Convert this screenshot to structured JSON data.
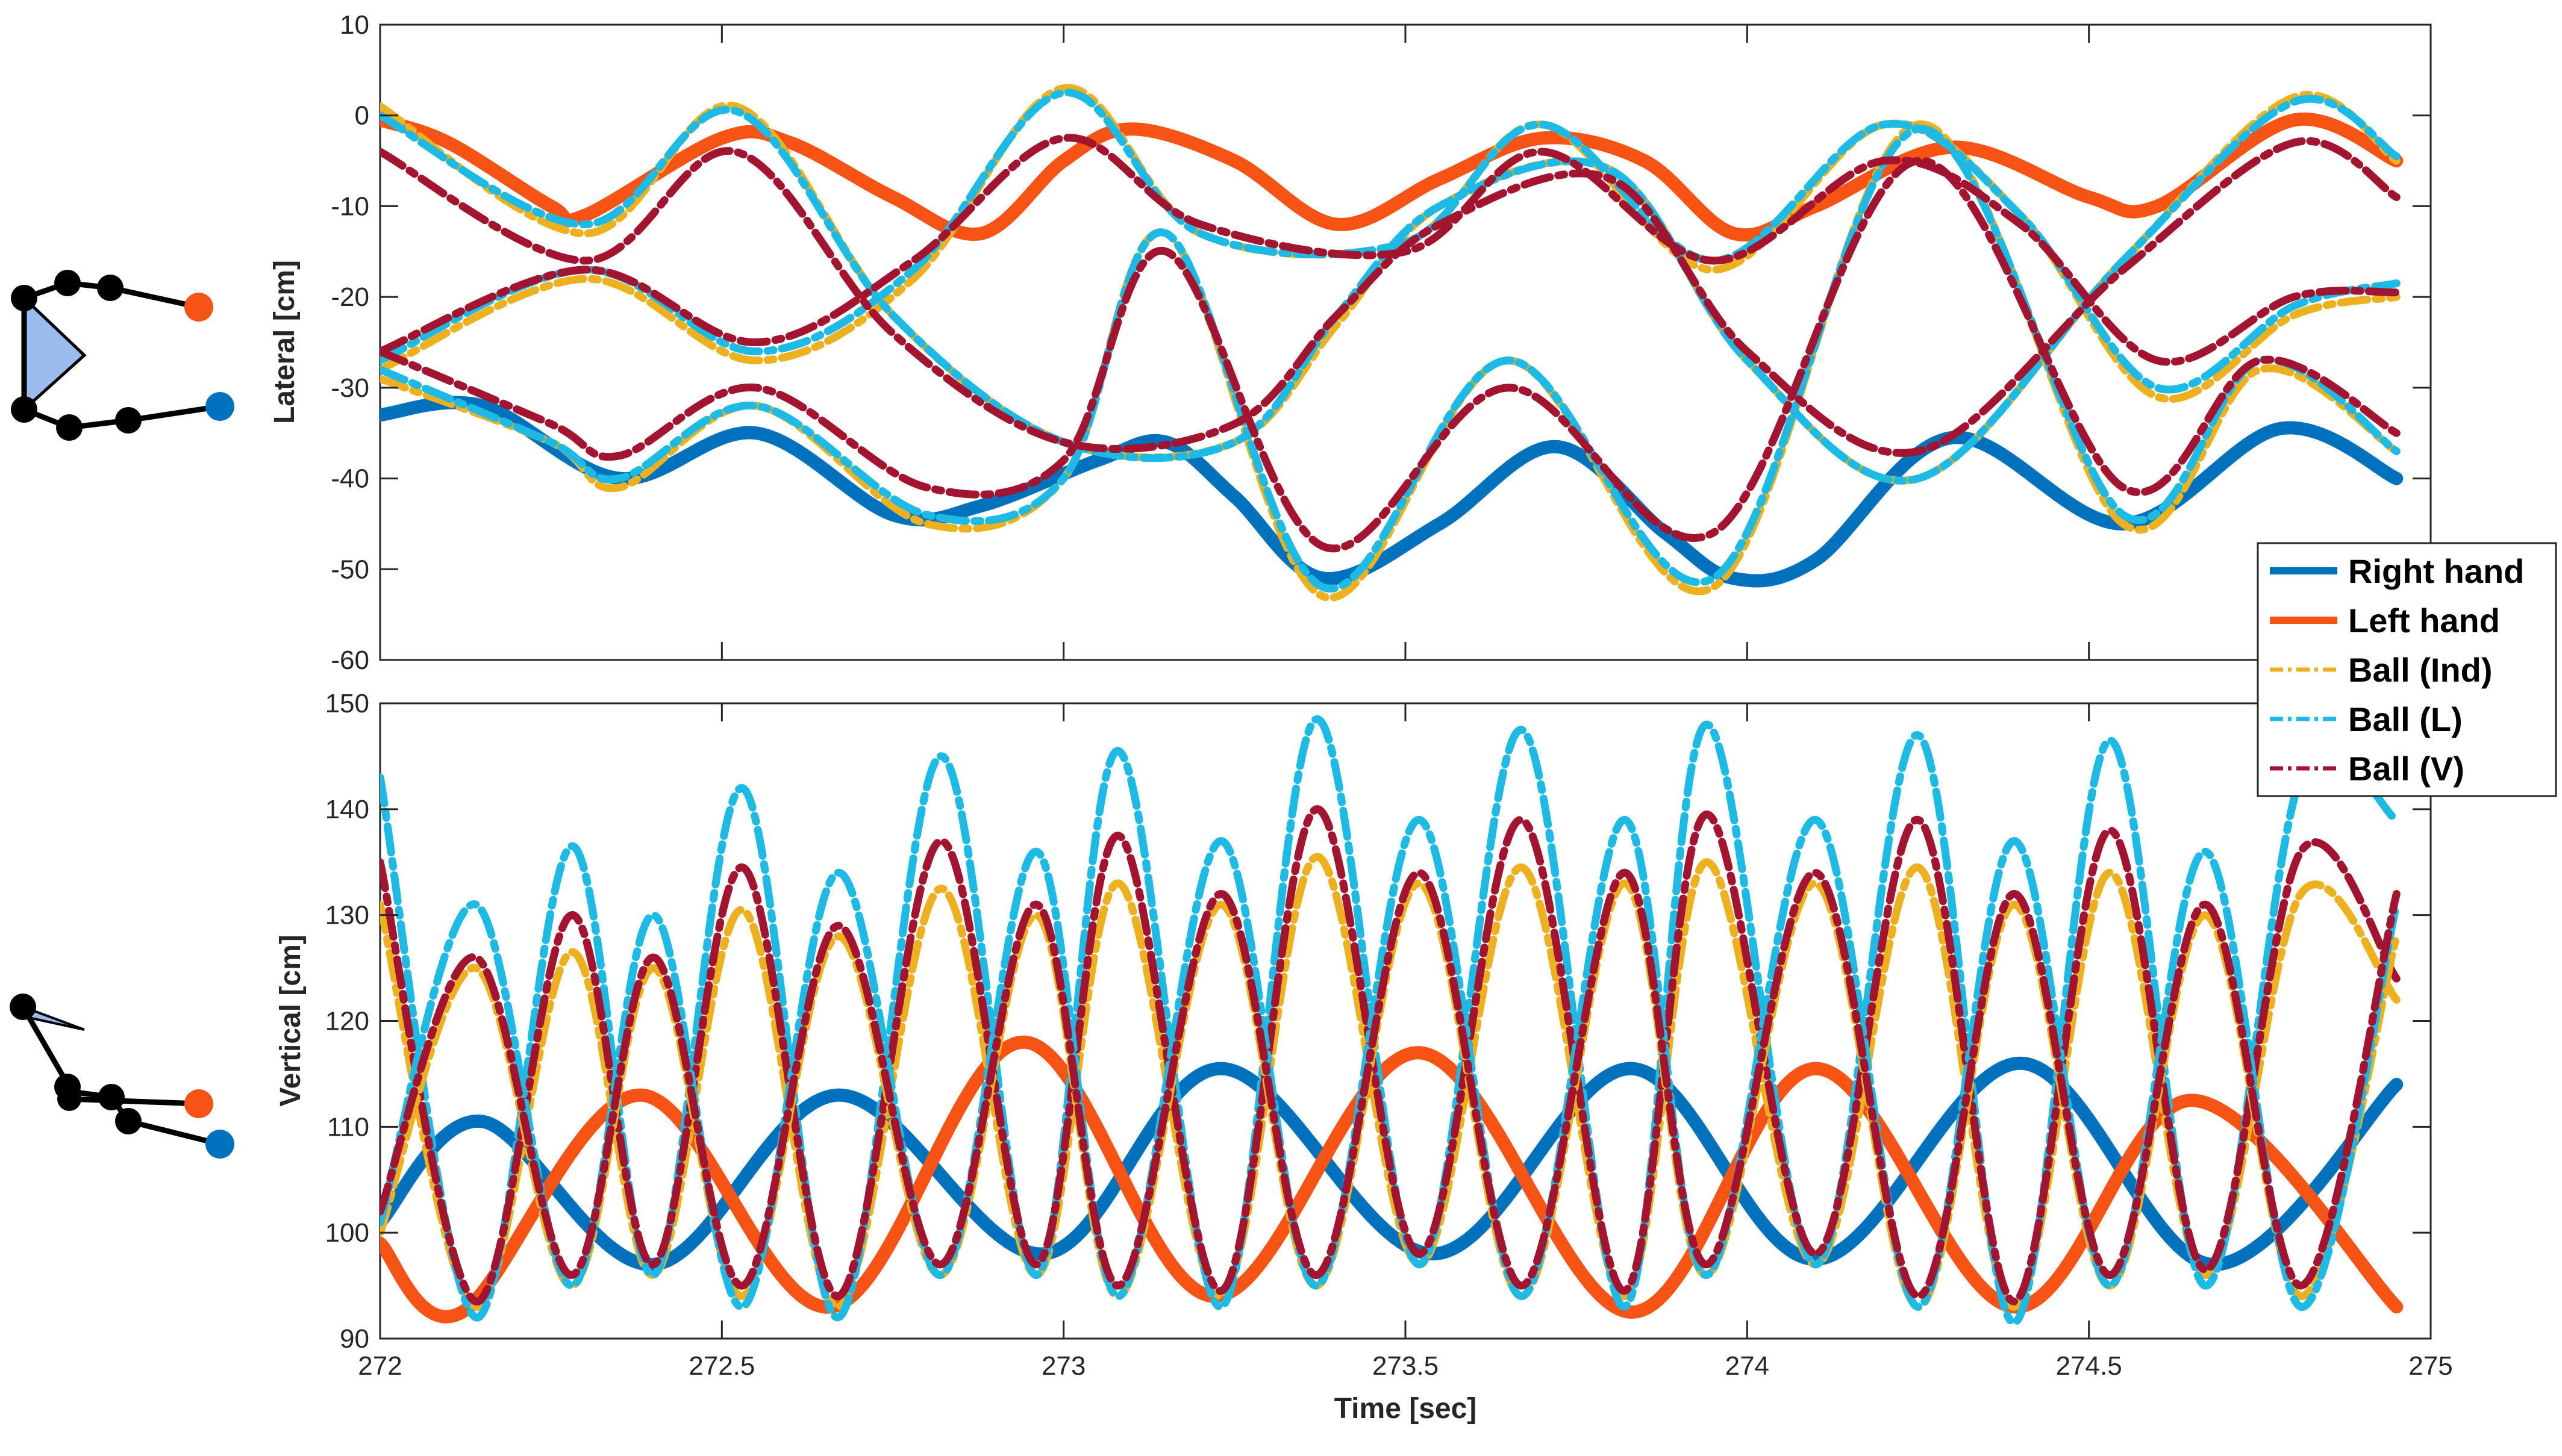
{
  "chart_data": [
    {
      "type": "line",
      "ylabel": "Lateral [cm]",
      "xlabel": "",
      "xlim": [
        272,
        275
      ],
      "ylim": [
        -60,
        10
      ],
      "x_ticks": [
        "272",
        "272.5",
        "273",
        "273.5",
        "274",
        "274.5",
        "275"
      ],
      "y_ticks": [
        "10",
        "0",
        "-10",
        "-20",
        "-30",
        "-40",
        "-50",
        "-60"
      ],
      "series": [
        {
          "name": "Right hand",
          "color": "#0072BD",
          "style": "solid",
          "x": [
            272.0,
            272.15,
            272.35,
            272.55,
            272.75,
            272.88,
            273.05,
            273.15,
            273.25,
            273.38,
            273.55,
            273.72,
            273.88,
            273.98,
            274.1,
            274.3,
            274.55,
            274.78,
            274.95
          ],
          "y": [
            -33,
            -32,
            -40,
            -35,
            -44,
            -43,
            -38,
            -36,
            -42,
            -51,
            -45,
            -36.5,
            -46,
            -51,
            -49,
            -35.5,
            -45,
            -34.5,
            -40
          ]
        },
        {
          "name": "Left hand",
          "color": "#F65314",
          "style": "solid",
          "x": [
            272.0,
            272.1,
            272.25,
            272.3,
            272.5,
            272.6,
            272.75,
            272.88,
            273.0,
            273.1,
            273.25,
            273.4,
            273.55,
            273.7,
            273.85,
            273.98,
            274.1,
            274.3,
            274.5,
            274.6,
            274.8,
            274.95
          ],
          "y": [
            -0.5,
            -3,
            -10,
            -11,
            -2.5,
            -3,
            -9,
            -13,
            -5,
            -1.5,
            -5,
            -12,
            -7,
            -2.5,
            -5,
            -13,
            -10,
            -3.5,
            -9,
            -10,
            -0.5,
            -5
          ]
        },
        {
          "name": "Ball (Ind) A",
          "color": "#EDB120",
          "style": "dashed",
          "x": [
            272.0,
            272.3,
            272.52,
            272.75,
            273.0,
            273.25,
            273.4,
            273.55,
            273.8,
            274.0,
            274.25,
            274.55,
            274.8,
            274.95
          ],
          "y": [
            1,
            -13,
            1,
            -22,
            -36,
            -36,
            -23,
            -10,
            -6,
            -27,
            -40,
            -16,
            2,
            -5
          ]
        },
        {
          "name": "Ball (Ind) B",
          "color": "#EDB120",
          "style": "dashed",
          "x": [
            272.0,
            272.25,
            272.35,
            272.55,
            272.8,
            273.0,
            273.15,
            273.38,
            273.65,
            273.95,
            274.25,
            274.55,
            274.75,
            274.95
          ],
          "y": [
            -29,
            -36,
            -41,
            -32,
            -45,
            -40,
            -13,
            -53,
            -27,
            -52,
            -1,
            -45,
            -28,
            -37
          ]
        },
        {
          "name": "Ball (Ind) C",
          "color": "#EDB120",
          "style": "dashed",
          "x": [
            272.0,
            272.3,
            272.55,
            272.78,
            273.0,
            273.2,
            273.5,
            273.7,
            273.95,
            274.2,
            274.4,
            274.6,
            274.8,
            274.95
          ],
          "y": [
            -28,
            -18,
            -27,
            -18,
            3,
            -13,
            -14,
            -1,
            -17,
            -1,
            -11,
            -31,
            -22,
            -20
          ]
        },
        {
          "name": "Ball (L) A",
          "color": "#1CBAE4",
          "style": "dashed",
          "x": [
            272.0,
            272.3,
            272.52,
            272.75,
            273.0,
            273.25,
            273.4,
            273.55,
            273.8,
            274.0,
            274.25,
            274.55,
            274.8,
            274.95
          ],
          "y": [
            0,
            -12,
            0.5,
            -22,
            -36,
            -36,
            -22,
            -10,
            -6,
            -27,
            -40,
            -16,
            1.5,
            -4.5
          ]
        },
        {
          "name": "Ball (L) B",
          "color": "#1CBAE4",
          "style": "dashed",
          "x": [
            272.0,
            272.25,
            272.35,
            272.55,
            272.8,
            273.0,
            273.15,
            273.38,
            273.65,
            273.95,
            274.25,
            274.55,
            274.75,
            274.95
          ],
          "y": [
            -28,
            -36,
            -40,
            -32,
            -44,
            -40,
            -13,
            -52,
            -27,
            -51,
            -1.5,
            -44,
            -27,
            -37
          ]
        },
        {
          "name": "Ball (L) C",
          "color": "#1CBAE4",
          "style": "dashed",
          "x": [
            272.0,
            272.3,
            272.55,
            272.78,
            273.0,
            273.2,
            273.5,
            273.7,
            273.95,
            274.2,
            274.4,
            274.6,
            274.8,
            274.95
          ],
          "y": [
            -27,
            -17,
            -26,
            -17,
            2.5,
            -13,
            -14,
            -1,
            -16,
            -1,
            -11,
            -30,
            -21,
            -18.5
          ]
        },
        {
          "name": "Ball (V) A",
          "color": "#A2142F",
          "style": "dashed",
          "x": [
            272.0,
            272.3,
            272.52,
            272.75,
            273.0,
            273.25,
            273.4,
            273.55,
            273.8,
            274.0,
            274.25,
            274.55,
            274.8,
            274.95
          ],
          "y": [
            -4,
            -16,
            -4,
            -24,
            -36,
            -34,
            -22,
            -12,
            -7,
            -26,
            -37,
            -17,
            -3,
            -9
          ]
        },
        {
          "name": "Ball (V) B",
          "color": "#A2142F",
          "style": "dashed",
          "x": [
            272.0,
            272.25,
            272.35,
            272.55,
            272.8,
            273.0,
            273.15,
            273.38,
            273.65,
            273.95,
            274.25,
            274.55,
            274.75,
            274.95
          ],
          "y": [
            -26,
            -34,
            -37.5,
            -30,
            -41,
            -38,
            -15,
            -47.5,
            -30,
            -46,
            -5,
            -41,
            -27,
            -35
          ]
        },
        {
          "name": "Ball (V) C",
          "color": "#A2142F",
          "style": "dashed",
          "x": [
            272.0,
            272.3,
            272.55,
            272.78,
            273.0,
            273.2,
            273.5,
            273.7,
            273.95,
            274.2,
            274.4,
            274.6,
            274.8,
            274.95
          ],
          "y": [
            -26,
            -17,
            -25,
            -16,
            -2.5,
            -12,
            -15,
            -4,
            -16,
            -5,
            -12,
            -27,
            -20,
            -19.5
          ]
        }
      ]
    },
    {
      "type": "line",
      "ylabel": "Vertical [cm]",
      "xlabel": "Time [sec]",
      "xlim": [
        272,
        275
      ],
      "ylim": [
        90,
        150
      ],
      "x_ticks": [
        "272",
        "272.5",
        "273",
        "273.5",
        "274",
        "274.5",
        "275"
      ],
      "y_ticks": [
        "150",
        "140",
        "130",
        "120",
        "110",
        "100",
        "90"
      ],
      "series": [
        {
          "name": "Right hand",
          "color": "#0072BD",
          "style": "solid",
          "x": [
            272.0,
            272.15,
            272.4,
            272.67,
            272.97,
            273.23,
            273.54,
            273.83,
            274.1,
            274.4,
            274.68,
            274.95
          ],
          "y": [
            101,
            110.5,
            97,
            113,
            98,
            115.5,
            98,
            115.5,
            97.5,
            116,
            97,
            114
          ]
        },
        {
          "name": "Left hand",
          "color": "#F65314",
          "style": "solid",
          "x": [
            272.0,
            272.12,
            272.38,
            272.66,
            272.94,
            273.22,
            273.52,
            273.83,
            274.1,
            274.39,
            274.65,
            274.95
          ],
          "y": [
            99,
            92.5,
            113,
            93,
            118,
            94,
            117,
            92.5,
            115.5,
            93,
            112.5,
            93
          ]
        },
        {
          "name": "Ball (Ind) A",
          "color": "#EDB120",
          "style": "dashed",
          "x": [
            272.0,
            272.14,
            272.28,
            272.4,
            272.53,
            272.67,
            272.82,
            272.96,
            273.08,
            273.23,
            273.37,
            273.52,
            273.67,
            273.82,
            273.94,
            274.1,
            274.25,
            274.39,
            274.53,
            274.67,
            274.81,
            274.95
          ],
          "y": [
            131,
            93,
            126.5,
            96,
            130.5,
            93,
            132.5,
            96,
            133,
            94,
            135.5,
            97,
            134.5,
            94,
            135,
            97,
            134.5,
            93,
            134,
            96,
            132,
            122
          ]
        },
        {
          "name": "Ball (L) A",
          "color": "#1CBAE4",
          "style": "dashed",
          "x": [
            272.0,
            272.14,
            272.28,
            272.4,
            272.53,
            272.67,
            272.82,
            272.96,
            273.08,
            273.23,
            273.37,
            273.52,
            273.67,
            273.82,
            273.94,
            274.1,
            274.25,
            274.39,
            274.53,
            274.67,
            274.81,
            274.95
          ],
          "y": [
            143,
            92,
            136.5,
            96,
            142,
            92,
            145,
            96,
            145.5,
            93,
            148.5,
            97,
            147.5,
            93,
            148,
            97,
            147,
            91.5,
            146.5,
            95,
            143,
            139
          ]
        },
        {
          "name": "Ball (V) A",
          "color": "#A2142F",
          "style": "dashed",
          "x": [
            272.0,
            272.14,
            272.28,
            272.4,
            272.53,
            272.67,
            272.82,
            272.96,
            273.08,
            273.23,
            273.37,
            273.52,
            273.67,
            273.82,
            273.94,
            274.1,
            274.25,
            274.39,
            274.53,
            274.67,
            274.81,
            274.95
          ],
          "y": [
            135,
            93.5,
            130,
            97,
            134.5,
            94,
            137,
            97,
            137.5,
            94.5,
            140,
            98,
            139,
            94.5,
            139.5,
            98,
            139,
            93.5,
            138,
            96.5,
            136,
            124
          ]
        },
        {
          "name": "Ball (Ind) B",
          "color": "#EDB120",
          "style": "dashed",
          "x": [
            272.0,
            272.14,
            272.28,
            272.4,
            272.53,
            272.67,
            272.82,
            272.96,
            273.08,
            273.23,
            273.37,
            273.52,
            273.67,
            273.82,
            273.94,
            274.1,
            274.25,
            274.39,
            274.53,
            274.67,
            274.81,
            274.95
          ],
          "y": [
            100,
            125,
            95,
            125,
            94,
            128,
            96,
            130,
            94,
            131,
            95,
            133,
            94,
            133,
            96,
            133,
            93,
            131,
            95,
            130,
            94,
            128
          ]
        },
        {
          "name": "Ball (L) B",
          "color": "#1CBAE4",
          "style": "dashed",
          "x": [
            272.0,
            272.14,
            272.28,
            272.4,
            272.53,
            272.67,
            272.82,
            272.96,
            273.08,
            273.23,
            273.37,
            273.52,
            273.67,
            273.82,
            273.94,
            274.1,
            274.25,
            274.39,
            274.53,
            274.67,
            274.81,
            274.95
          ],
          "y": [
            101,
            131,
            95,
            130,
            93,
            134,
            96,
            136,
            94,
            137,
            95,
            139,
            94,
            139,
            96,
            139,
            93,
            137,
            95,
            136,
            93,
            131
          ]
        },
        {
          "name": "Ball (V) B",
          "color": "#A2142F",
          "style": "dashed",
          "x": [
            272.0,
            272.14,
            272.28,
            272.4,
            272.53,
            272.67,
            272.82,
            272.96,
            273.08,
            273.23,
            273.37,
            273.52,
            273.67,
            273.82,
            273.94,
            274.1,
            274.25,
            274.39,
            274.53,
            274.67,
            274.81,
            274.95
          ],
          "y": [
            102,
            126,
            96,
            126,
            95,
            129,
            97,
            131,
            95,
            132,
            96,
            134,
            95,
            134,
            97,
            134,
            94,
            132,
            96,
            131,
            95,
            132
          ]
        }
      ]
    }
  ],
  "legend": {
    "entries": [
      {
        "label": "Right hand",
        "color": "#0072BD",
        "style": "solid"
      },
      {
        "label": "Left hand",
        "color": "#F65314",
        "style": "solid"
      },
      {
        "label": "Ball (Ind)",
        "color": "#EDB120",
        "style": "dashed"
      },
      {
        "label": "Ball (L)",
        "color": "#1CBAE4",
        "style": "dashed"
      },
      {
        "label": "Ball (V)",
        "color": "#A2142F",
        "style": "dashed"
      }
    ],
    "location": "right"
  },
  "skeleton": {
    "joint_color": "#000000",
    "right_marker_color": "#0072BD",
    "left_marker_color": "#F65314",
    "torso_fill": "#99BBEE"
  }
}
